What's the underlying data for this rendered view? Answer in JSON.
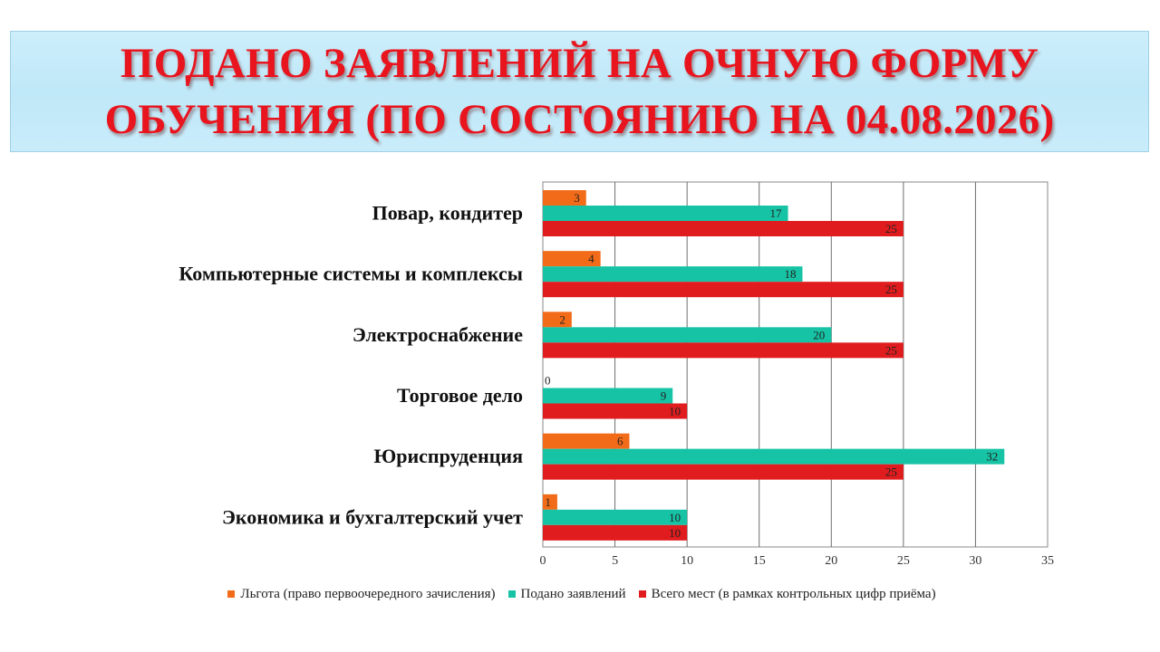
{
  "title": {
    "line1": "ПОДАНО ЗАЯВЛЕНИЙ НА ОЧНУЮ ФОРМУ",
    "line2": "ОБУЧЕНИЯ (ПО СОСТОЯНИЮ НА 04.08.2026)"
  },
  "colors": {
    "title_red": "#e8141e",
    "title_bg": "#c6ebfa",
    "lgota": "#f26b18",
    "podano": "#16c3a5",
    "vsego": "#e11c1e"
  },
  "chart_data": {
    "type": "bar",
    "orientation": "horizontal",
    "categories": [
      "Повар, кондитер",
      "Компьютерные системы и комплексы",
      "Электроснабжение",
      "Торговое дело",
      "Юриспруденция",
      "Экономика и бухгалтерский учет"
    ],
    "series": [
      {
        "name": "Льгота (право первоочередного зачисления)",
        "color": "#f26b18",
        "values": [
          3,
          4,
          2,
          0,
          6,
          1
        ]
      },
      {
        "name": "Подано заявлений",
        "color": "#16c3a5",
        "values": [
          17,
          18,
          20,
          9,
          32,
          10
        ]
      },
      {
        "name": "Всего мест (в рамках контрольных цифр приёма)",
        "color": "#e11c1e",
        "values": [
          25,
          25,
          25,
          10,
          25,
          10
        ]
      }
    ],
    "xlim": [
      0,
      35
    ],
    "xticks": [
      0,
      5,
      10,
      15,
      20,
      25,
      30,
      35
    ],
    "grid": true,
    "legend_position": "bottom",
    "data_labels": true
  }
}
